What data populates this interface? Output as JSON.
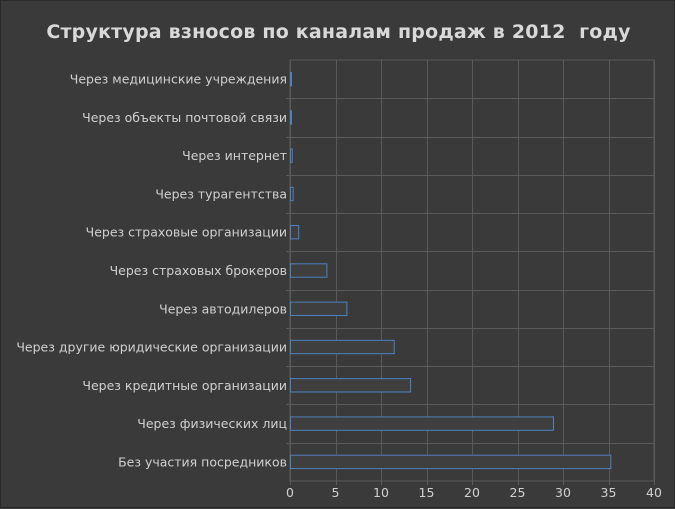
{
  "chart_data": {
    "type": "bar",
    "orientation": "horizontal",
    "title": "Структура взносов по каналам продаж в 2012  году",
    "categories": [
      "Через медицинские учреждения",
      "Через объекты почтовой связи",
      "Через интернет",
      "Через турагентства",
      "Через страховые организации",
      "Через страховых брокеров",
      "Через автодилеров",
      "Через другие юридические организации",
      "Через кредитные организации",
      "Через физических лиц",
      "Без участия посредников"
    ],
    "values": [
      0.1,
      0.1,
      0.2,
      0.3,
      0.9,
      4.0,
      6.2,
      11.4,
      13.2,
      28.9,
      35.2
    ],
    "xlim": [
      0,
      40
    ],
    "xticks": [
      "0",
      "5",
      "10",
      "15",
      "20",
      "25",
      "30",
      "35",
      "40"
    ],
    "xlabel": "",
    "ylabel": "",
    "grid": true,
    "legend": "none",
    "colors": {
      "background": "#3a3a3a",
      "grid": "#5a5a5a",
      "bar_fill": "#3f3f3f",
      "bar_stroke": "#4f81bd",
      "text": "#d0d0d0"
    }
  }
}
